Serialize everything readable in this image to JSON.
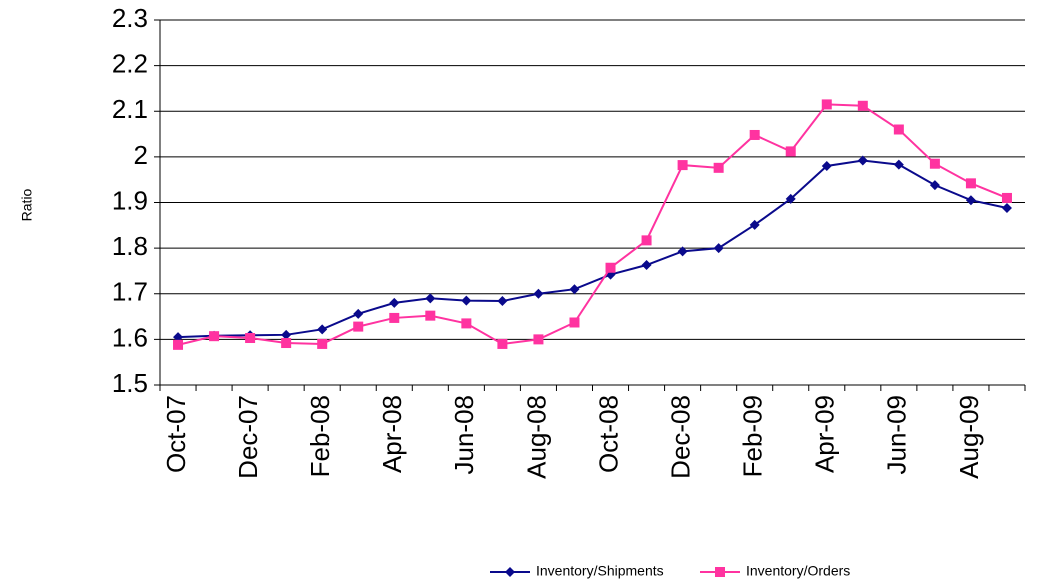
{
  "chart_data": {
    "type": "line",
    "y_label": "Ratio",
    "categories": [
      "Oct-07",
      null,
      "Dec-07",
      null,
      "Feb-08",
      null,
      "Apr-08",
      null,
      "Jun-08",
      null,
      "Aug-08",
      null,
      "Oct-08",
      null,
      "Dec-08",
      null,
      "Feb-09",
      null,
      "Apr-09",
      null,
      "Jun-09",
      null,
      "Aug-09",
      null
    ],
    "series": [
      {
        "name": "Inventory/Shipments",
        "color": "#0a0a8c",
        "marker": "diamond",
        "values": [
          1.605,
          1.608,
          1.609,
          1.61,
          1.622,
          1.656,
          1.68,
          1.69,
          1.685,
          1.684,
          1.7,
          1.71,
          1.742,
          1.763,
          1.793,
          1.8,
          1.851,
          1.908,
          1.98,
          1.992,
          1.983,
          1.938,
          1.905,
          1.888
        ]
      },
      {
        "name": "Inventory/Orders",
        "color": "#ff33a0",
        "marker": "square",
        "values": [
          1.588,
          1.607,
          1.603,
          1.592,
          1.59,
          1.628,
          1.647,
          1.652,
          1.635,
          1.59,
          1.6,
          1.637,
          1.757,
          1.817,
          1.982,
          1.976,
          2.048,
          2.012,
          2.115,
          2.112,
          2.06,
          1.985,
          1.942,
          1.91
        ]
      }
    ],
    "ylim": [
      1.5,
      2.3
    ],
    "yticks": [
      1.5,
      1.6,
      1.7,
      1.8,
      1.9,
      2,
      2.1,
      2.2,
      2.3
    ],
    "grid": true,
    "legend": "bottom"
  }
}
